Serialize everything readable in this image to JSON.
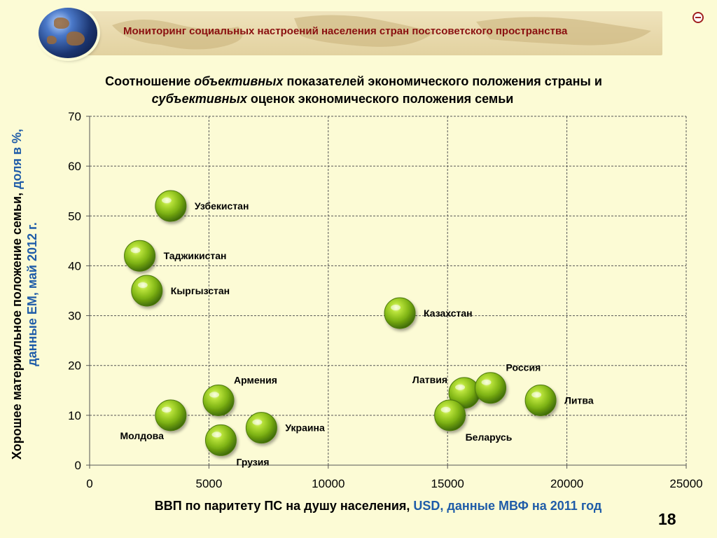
{
  "header": {
    "title": "Мониторинг социальных настроений населения стран постсоветского пространства"
  },
  "icons": {
    "globe": "globe-icon",
    "corner": "corner-logo-icon"
  },
  "page_number": "18",
  "colors": {
    "header_title": "#8a1010",
    "axis_note_blue": "#1f5ca8",
    "marker": "#8cc31a",
    "background": "#fcfbd5"
  },
  "chart_data": {
    "type": "scatter",
    "title": {
      "line1_prefix": "Соотношение ",
      "line1_italic": "объективных",
      "line1_suffix": " показателей экономического положения страны и",
      "line2_italic": "субъективных",
      "line2_suffix": " оценок экономического положения семьи"
    },
    "xlabel": {
      "main": "ВВП по паритету ПС на душу населения, ",
      "note": "USD, данные МВФ на 2011 год"
    },
    "ylabel": {
      "main": "Хорошее материальное положение семьи, ",
      "note": "доля в %, данные ЕМ, май 2012 г."
    },
    "xlim": [
      0,
      25000
    ],
    "ylim": [
      0,
      70
    ],
    "xticks": [
      "0",
      "5000",
      "10000",
      "15000",
      "20000",
      "25000"
    ],
    "yticks": [
      "0",
      "10",
      "20",
      "30",
      "40",
      "50",
      "60",
      "70"
    ],
    "grid": true,
    "points": [
      {
        "label": "Узбекистан",
        "x": 3400,
        "y": 52,
        "label_pos": "right"
      },
      {
        "label": "Таджикистан",
        "x": 2100,
        "y": 42,
        "label_pos": "right"
      },
      {
        "label": "Кыргызстан",
        "x": 2400,
        "y": 35,
        "label_pos": "right"
      },
      {
        "label": "Казахстан",
        "x": 13000,
        "y": 30.5,
        "label_pos": "right"
      },
      {
        "label": "Армения",
        "x": 5400,
        "y": 13,
        "label_pos": "top-right"
      },
      {
        "label": "Молдова",
        "x": 3400,
        "y": 10,
        "label_pos": "bottom-left"
      },
      {
        "label": "Украина",
        "x": 7200,
        "y": 7.5,
        "label_pos": "right"
      },
      {
        "label": "Грузия",
        "x": 5500,
        "y": 5,
        "label_pos": "bottom-right"
      },
      {
        "label": "Латвия",
        "x": 15700,
        "y": 14.5,
        "label_pos": "top-left"
      },
      {
        "label": "Россия",
        "x": 16800,
        "y": 15.5,
        "label_pos": "top-right"
      },
      {
        "label": "Литва",
        "x": 18900,
        "y": 13,
        "label_pos": "right"
      },
      {
        "label": "Беларусь",
        "x": 15100,
        "y": 10,
        "label_pos": "bottom-right"
      }
    ]
  }
}
